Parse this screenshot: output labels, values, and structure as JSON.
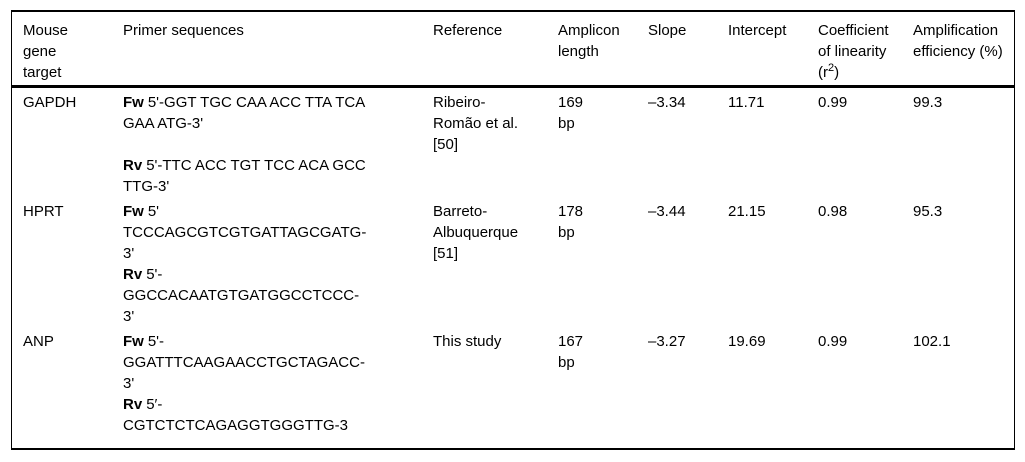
{
  "table": {
    "header": {
      "gene": "Mouse gene target",
      "primer": "Primer sequences",
      "reference": "Reference",
      "amplicon": "Amplicon length",
      "slope": "Slope",
      "intercept": "Intercept",
      "linearity_pre": "Coefficient of linearity (r",
      "linearity_sup": "2",
      "linearity_post": ")",
      "efficiency": "Amplification efficiency (%)"
    },
    "rows": [
      {
        "gene": "GAPDH",
        "primers": [
          {
            "label": "Fw",
            "lines": [
              "5'-GGT TGC CAA ACC TTA TCA",
              "GAA ATG-3'"
            ]
          },
          {
            "label": "Rv",
            "lines": [
              "5'-TTC ACC TGT TCC ACA GCC",
              "TTG-3'"
            ]
          }
        ],
        "reference": "Ribeiro-Romão et al. [50]",
        "amplicon_length": "169 bp",
        "slope": "–3.34",
        "intercept": "11.71",
        "linearity_r2": "0.99",
        "efficiency_pct": "99.3"
      },
      {
        "gene": "HPRT",
        "primers": [
          {
            "label": "Fw",
            "lines": [
              "5'",
              "TCCCAGCGTCGTGATTAGCGATG-",
              "3'"
            ]
          },
          {
            "label": "Rv",
            "lines": [
              "5'-",
              "GGCCACAATGTGATGGCCTCCC-",
              "3'"
            ]
          }
        ],
        "reference": "Barreto-Albuquerque [51]",
        "amplicon_length": "178 bp",
        "slope": "–3.44",
        "intercept": "21.15",
        "linearity_r2": "0.98",
        "efficiency_pct": "95.3"
      },
      {
        "gene": "ANP",
        "primers": [
          {
            "label": "Fw",
            "lines": [
              "5'-",
              "GGATTTCAAGAACCTGCTAGACC-",
              "3'"
            ]
          },
          {
            "label": "Rv",
            "lines": [
              "5′-",
              "CGTCTCTCAGAGGTGGGTTG-3"
            ]
          }
        ],
        "reference": "This study",
        "amplicon_length": "167 bp",
        "slope": "–3.27",
        "intercept": "19.69",
        "linearity_r2": "0.99",
        "efficiency_pct": "102.1"
      }
    ]
  }
}
